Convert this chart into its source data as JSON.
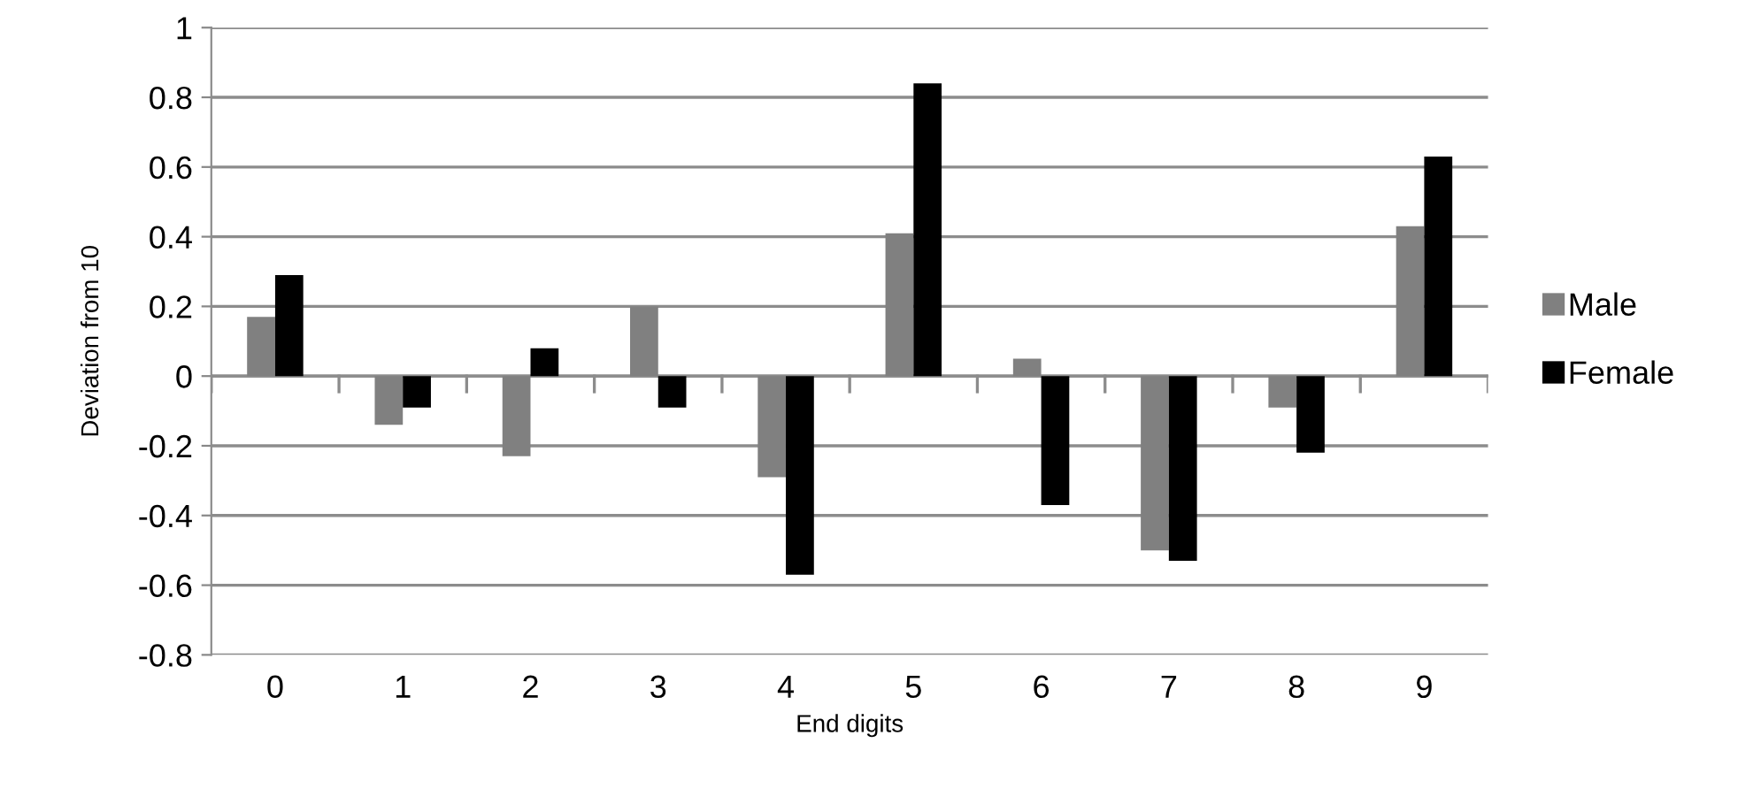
{
  "chart_data": {
    "type": "bar",
    "xlabel": "End digits",
    "ylabel": "Deviation from 10",
    "categories": [
      "0",
      "1",
      "2",
      "3",
      "4",
      "5",
      "6",
      "7",
      "8",
      "9"
    ],
    "series": [
      {
        "name": "Male",
        "color": "#808080",
        "values": [
          0.17,
          -0.14,
          -0.23,
          0.2,
          -0.29,
          0.41,
          0.05,
          -0.5,
          -0.09,
          0.43
        ]
      },
      {
        "name": "Female",
        "color": "#000000",
        "values": [
          0.29,
          -0.09,
          0.08,
          -0.09,
          -0.57,
          0.84,
          -0.37,
          -0.53,
          -0.22,
          0.63
        ]
      }
    ],
    "ylim": [
      -0.8,
      1
    ],
    "yticks": [
      -0.8,
      -0.6,
      -0.4,
      -0.2,
      0,
      0.2,
      0.4,
      0.6,
      0.8,
      1
    ],
    "grid": "y",
    "legend": "right"
  }
}
